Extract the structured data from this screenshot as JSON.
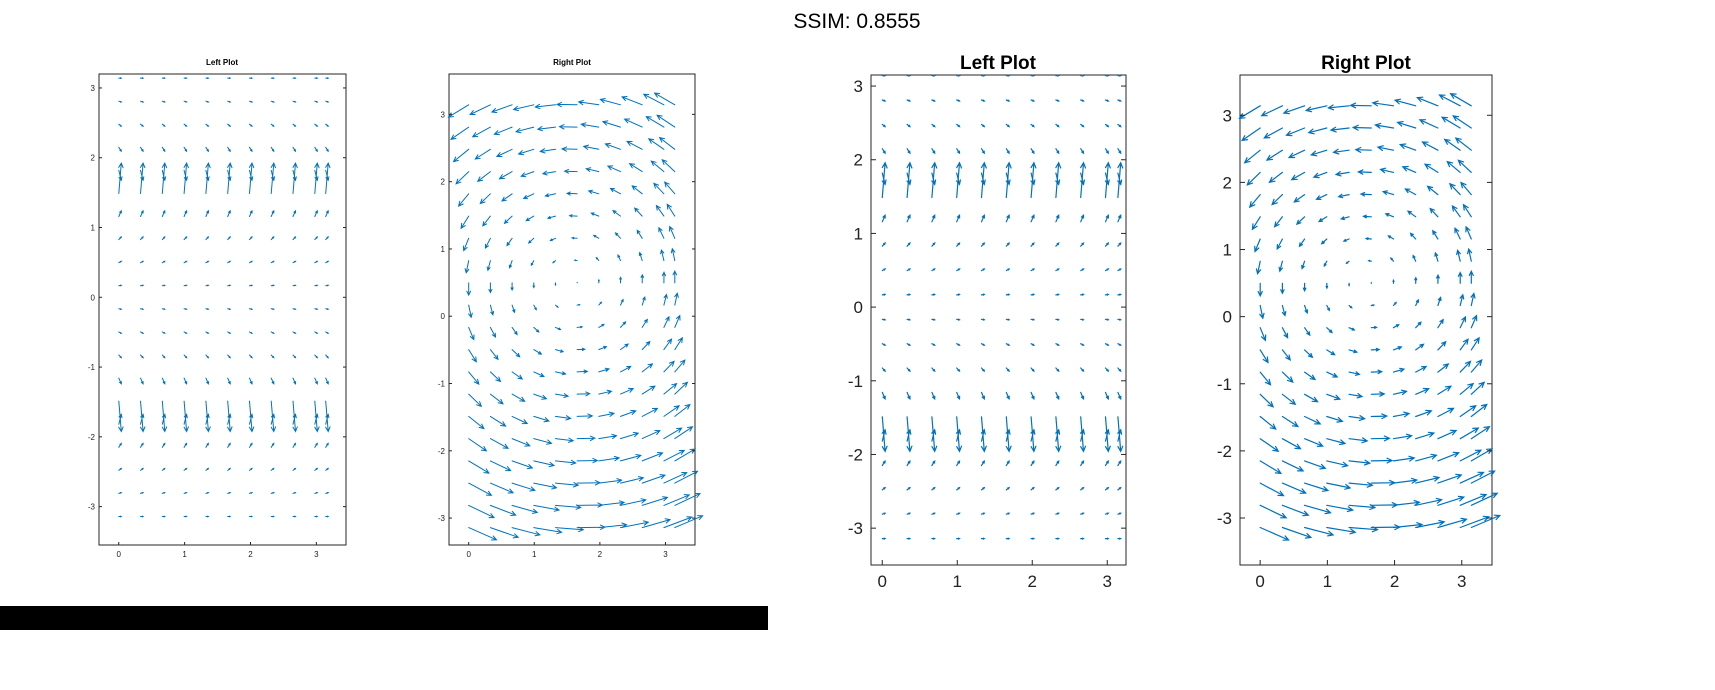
{
  "header": {
    "title": "SSIM: 0.8555"
  },
  "colors": {
    "arrow": "#0072BD",
    "axis": "#262626",
    "black_bar": "#000000"
  },
  "chart_data": [
    {
      "type": "quiver",
      "panel": "left-small",
      "title": "Left Plot",
      "field": "u = 1, v = tan(y)",
      "xlim": [
        -0.3,
        3.45
      ],
      "ylim": [
        -3.55,
        3.2
      ],
      "xgrid": [
        0,
        0.3307,
        0.6614,
        0.9921,
        1.3228,
        1.6535,
        1.9842,
        2.3149,
        2.6456,
        2.9763,
        3.1416
      ],
      "ygrid_range": [
        -3.1416,
        3.1416
      ],
      "ygrid_count": 20,
      "xticks": [
        {
          "v": 0,
          "label": "0"
        },
        {
          "v": 1,
          "label": "1"
        },
        {
          "v": 2,
          "label": "2"
        },
        {
          "v": 3,
          "label": "3"
        }
      ],
      "yticks": [
        {
          "v": -3,
          "label": "-3"
        },
        {
          "v": -2,
          "label": "-2"
        },
        {
          "v": -1,
          "label": "-1"
        },
        {
          "v": 0,
          "label": "0"
        },
        {
          "v": 1,
          "label": "1"
        },
        {
          "v": 2,
          "label": "2"
        },
        {
          "v": 3,
          "label": "3"
        }
      ]
    },
    {
      "type": "quiver",
      "panel": "right-small",
      "title": "Right Plot",
      "field": "u = -(y - 0.5), v = x - 1.6 (rotation about (1.6, 0.5))",
      "xlim": [
        -0.3,
        3.45
      ],
      "ylim": [
        -3.4,
        3.6
      ],
      "xgrid": [
        0,
        0.3307,
        0.6614,
        0.9921,
        1.3228,
        1.6535,
        1.9842,
        2.3149,
        2.6456,
        2.9763,
        3.1416
      ],
      "ygrid_range": [
        -3.1416,
        3.1416
      ],
      "ygrid_count": 20,
      "xticks": [
        {
          "v": 0,
          "label": "0"
        },
        {
          "v": 1,
          "label": "1"
        },
        {
          "v": 2,
          "label": "2"
        },
        {
          "v": 3,
          "label": "3"
        }
      ],
      "yticks": [
        {
          "v": -3,
          "label": "-3"
        },
        {
          "v": -2,
          "label": "-2"
        },
        {
          "v": -1,
          "label": "-1"
        },
        {
          "v": 0,
          "label": "0"
        },
        {
          "v": 1,
          "label": "1"
        },
        {
          "v": 2,
          "label": "2"
        },
        {
          "v": 3,
          "label": "3"
        }
      ]
    },
    {
      "type": "quiver",
      "panel": "left-big",
      "title": "Left Plot",
      "field": "u = 1, v = tan(y)",
      "xlim": [
        -0.15,
        3.25
      ],
      "ylim": [
        -3.5,
        3.15
      ],
      "xgrid": [
        0,
        0.3307,
        0.6614,
        0.9921,
        1.3228,
        1.6535,
        1.9842,
        2.3149,
        2.6456,
        2.9763,
        3.1416
      ],
      "ygrid_range": [
        -3.1416,
        3.1416
      ],
      "ygrid_count": 20,
      "xticks": [
        {
          "v": 0,
          "label": "0"
        },
        {
          "v": 1,
          "label": "1"
        },
        {
          "v": 2,
          "label": "2"
        },
        {
          "v": 3,
          "label": "3"
        }
      ],
      "yticks": [
        {
          "v": -3,
          "label": "-3"
        },
        {
          "v": -2,
          "label": "-2"
        },
        {
          "v": -1,
          "label": "-1"
        },
        {
          "v": 0,
          "label": "0"
        },
        {
          "v": 1,
          "label": "1"
        },
        {
          "v": 2,
          "label": "2"
        },
        {
          "v": 3,
          "label": "3"
        }
      ]
    },
    {
      "type": "quiver",
      "panel": "right-big",
      "title": "Right Plot",
      "field": "u = -(y - 0.5), v = x - 1.6 (rotation about (1.6, 0.5))",
      "xlim": [
        -0.3,
        3.45
      ],
      "ylim": [
        -3.7,
        3.6
      ],
      "xgrid": [
        0,
        0.3307,
        0.6614,
        0.9921,
        1.3228,
        1.6535,
        1.9842,
        2.3149,
        2.6456,
        2.9763,
        3.1416
      ],
      "ygrid_range": [
        -3.1416,
        3.1416
      ],
      "ygrid_count": 20,
      "xticks": [
        {
          "v": 0,
          "label": "0"
        },
        {
          "v": 1,
          "label": "1"
        },
        {
          "v": 2,
          "label": "2"
        },
        {
          "v": 3,
          "label": "3"
        }
      ],
      "yticks": [
        {
          "v": -3,
          "label": "-3"
        },
        {
          "v": -2,
          "label": "-2"
        },
        {
          "v": -1,
          "label": "-1"
        },
        {
          "v": 0,
          "label": "0"
        },
        {
          "v": 1,
          "label": "1"
        },
        {
          "v": 2,
          "label": "2"
        },
        {
          "v": 3,
          "label": "3"
        }
      ]
    }
  ]
}
